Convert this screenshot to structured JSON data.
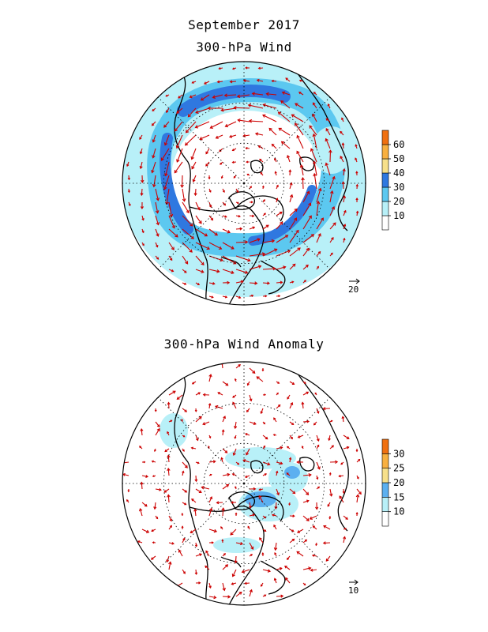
{
  "header": {
    "title": "September 2017",
    "panel1_title": "300-hPa Wind",
    "panel2_title": "300-hPa Wind Anomaly"
  },
  "chart_data": [
    {
      "type": "heatmap",
      "title": "300-hPa Wind",
      "projection": "north-polar-stereographic",
      "grid": true,
      "colorbar": {
        "ticks": [
          "10",
          "20",
          "30",
          "40",
          "50",
          "60"
        ],
        "colors": [
          "#ffffff",
          "#b8f0f8",
          "#5cc8f0",
          "#2f78e0",
          "#f7e08a",
          "#f8b040",
          "#f07010"
        ],
        "placement": "right"
      },
      "reference_vector_label": "20",
      "features": [
        "continental outlines",
        "wind-speed shading",
        "wind vectors"
      ]
    },
    {
      "type": "heatmap",
      "title": "300-hPa Wind Anomaly",
      "projection": "north-polar-stereographic",
      "grid": true,
      "colorbar": {
        "ticks": [
          "10",
          "15",
          "20",
          "25",
          "30"
        ],
        "colors": [
          "#ffffff",
          "#b8f0f8",
          "#5cb0f0",
          "#f7e08a",
          "#f8b040",
          "#f07010"
        ],
        "placement": "right"
      },
      "reference_vector_label": "10",
      "features": [
        "continental outlines",
        "anomaly shading",
        "anomaly wind vectors"
      ]
    }
  ],
  "colors": {
    "vector": "#cc0000",
    "coast": "#000000",
    "grid": "#000000"
  }
}
